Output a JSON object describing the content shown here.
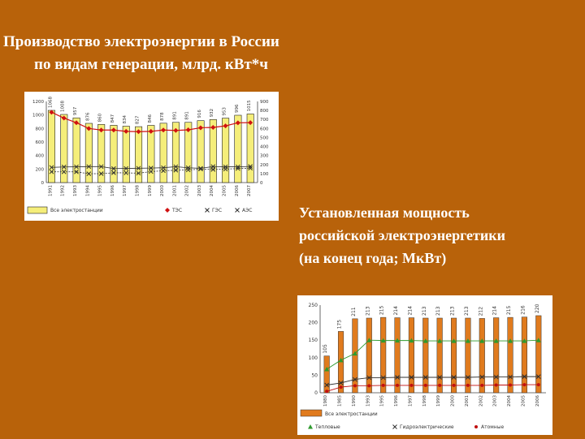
{
  "title": {
    "line1": "Производство электроэнергии в России",
    "line2": "по видам генерации, млрд. кВт*ч"
  },
  "subtitle": {
    "line1": "Установленная мощность",
    "line2": "российской электроэнергетики",
    "line3": "(на конец года; МкВт)"
  },
  "chart_data": [
    {
      "type": "bar",
      "categories": [
        "1991",
        "1992",
        "1993",
        "1994",
        "1995",
        "1996",
        "1997",
        "1998",
        "1999",
        "2000",
        "2001",
        "2002",
        "2003",
        "2004",
        "2005",
        "2006",
        "2007"
      ],
      "left_ylim": [
        0,
        1200
      ],
      "left_ticks": [
        "0",
        "200",
        "400",
        "600",
        "800",
        "1000",
        "1200"
      ],
      "right_ylim": [
        0,
        900
      ],
      "right_ticks": [
        "0",
        "100",
        "200",
        "300",
        "400",
        "500",
        "600",
        "700",
        "800",
        "900"
      ],
      "bar_labels": [
        "1068",
        "1008",
        "957",
        "876",
        "860",
        "847",
        "834",
        "827",
        "846",
        "878",
        "891",
        "891",
        "916",
        "932",
        "953",
        "996",
        "1015"
      ],
      "bar_color": "#F5EE7A",
      "series": [
        {
          "name": "Все электростанции",
          "values": [
            1068,
            1008,
            957,
            876,
            860,
            847,
            834,
            827,
            846,
            878,
            891,
            891,
            916,
            932,
            953,
            996,
            1015
          ],
          "color": "#F5EE7A"
        },
        {
          "name": "ТЭС",
          "values": [
            780,
            715,
            664,
            600,
            583,
            583,
            568,
            565,
            568,
            583,
            578,
            585,
            608,
            612,
            629,
            663,
            665
          ],
          "color": "#D01010"
        },
        {
          "name": "ГЭС",
          "values": [
            168,
            173,
            175,
            177,
            177,
            155,
            157,
            159,
            161,
            165,
            176,
            164,
            158,
            178,
            175,
            175,
            179
          ],
          "color": "#303030"
        },
        {
          "name": "АЭС",
          "values": [
            120,
            119,
            119,
            98,
            99,
            109,
            108,
            104,
            122,
            131,
            137,
            140,
            150,
            145,
            149,
            156,
            160
          ],
          "color": "#303030"
        }
      ]
    },
    {
      "type": "bar",
      "categories": [
        "1980",
        "1985",
        "1990",
        "1993",
        "1995",
        "1996",
        "1997",
        "1998",
        "1999",
        "2000",
        "2001",
        "2002",
        "2003",
        "2004",
        "2005",
        "2006"
      ],
      "ylim": [
        0,
        250
      ],
      "ticks": [
        "0",
        "50",
        "100",
        "150",
        "200",
        "250"
      ],
      "bar_labels": [
        "105",
        "175",
        "211",
        "213",
        "215",
        "214",
        "214",
        "213",
        "213",
        "213",
        "213",
        "212",
        "214",
        "215",
        "216",
        "220"
      ],
      "bar_color": "#E07B1E",
      "series": [
        {
          "name": "Все электростанции",
          "values": [
            105,
            175,
            211,
            213,
            215,
            214,
            214,
            213,
            213,
            213,
            213,
            212,
            214,
            215,
            216,
            220
          ],
          "color": "#E07B1E"
        },
        {
          "name": "Тепловые",
          "values": [
            67,
            93,
            112,
            150,
            149,
            149,
            149,
            148,
            148,
            148,
            148,
            148,
            148,
            148,
            148,
            150
          ],
          "color": "#2E9A2E"
        },
        {
          "name": "Гидроэлектрические",
          "values": [
            22,
            28,
            38,
            43,
            43,
            44,
            44,
            44,
            44,
            44,
            44,
            45,
            45,
            45,
            46,
            46
          ],
          "color": "#303030"
        },
        {
          "name": "Атомные",
          "values": [
            4,
            16,
            20,
            20,
            21,
            21,
            21,
            21,
            21,
            21,
            21,
            21,
            22,
            22,
            23,
            23
          ],
          "color": "#C01010"
        }
      ]
    }
  ]
}
